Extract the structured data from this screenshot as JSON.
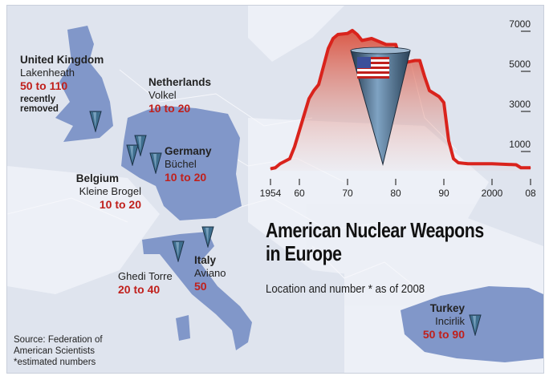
{
  "title_line1": "American Nuclear Weapons",
  "title_line2": "in Europe",
  "subtitle": "Location and number * as of 2008",
  "source": [
    "Source: Federation of",
    "American Scientists",
    "*estimated numbers"
  ],
  "colors": {
    "highlight_country": "#8197c9",
    "background_land": "#dfe4ee",
    "number_red": "#c0201c",
    "chart_line": "#d9231c",
    "marker": "#3f6f8f"
  },
  "locations": [
    {
      "country": "United Kingdom",
      "base": "Lakenheath",
      "number": "50 to 110",
      "note": "recently removed"
    },
    {
      "country": "Netherlands",
      "base": "Volkel",
      "number": "10 to 20"
    },
    {
      "country": "Germany",
      "base": "Büchel",
      "number": "10 to 20"
    },
    {
      "country": "Belgium",
      "base": "Kleine Brogel",
      "number": "10 to 20"
    },
    {
      "country": "",
      "base": "Ghedi Torre",
      "number": "20 to 40"
    },
    {
      "country": "Italy",
      "base": "Aviano",
      "number": "50"
    },
    {
      "country": "Turkey",
      "base": "Incirlik",
      "number": "50 to 90"
    }
  ],
  "icons": {
    "marker": "nuclear-bomb-cone-icon",
    "flag": "us-flag-icon"
  },
  "chart_data": {
    "type": "area",
    "title": "",
    "xlabel": "",
    "ylabel": "",
    "x_tick_labels": [
      "1954",
      "60",
      "70",
      "80",
      "90",
      "2000",
      "08"
    ],
    "x_ticks": [
      1954,
      1960,
      1970,
      1980,
      1990,
      2000,
      2008
    ],
    "y_tick_labels": [
      "7000",
      "5000",
      "3000",
      "1000"
    ],
    "y_ticks": [
      7000,
      5000,
      3000,
      1000
    ],
    "xlim": [
      1954,
      2008
    ],
    "ylim": [
      0,
      7500
    ],
    "grid": false,
    "x": [
      1954,
      1955,
      1956,
      1958,
      1959,
      1960,
      1961,
      1962,
      1963,
      1964,
      1965,
      1966,
      1967,
      1968,
      1970,
      1971,
      1972,
      1973,
      1975,
      1976,
      1978,
      1980,
      1981,
      1982,
      1984,
      1985,
      1986,
      1987,
      1989,
      1990,
      1991,
      1992,
      1993,
      1995,
      2000,
      2005,
      2006,
      2008
    ],
    "y": [
      100,
      150,
      350,
      600,
      1200,
      2000,
      2800,
      3600,
      4000,
      4300,
      5200,
      6100,
      6600,
      6800,
      6850,
      7000,
      6800,
      6500,
      6600,
      6500,
      6300,
      6300,
      5500,
      5400,
      5500,
      5500,
      4700,
      4000,
      3700,
      3400,
      1500,
      600,
      400,
      350,
      350,
      300,
      150,
      150
    ]
  }
}
